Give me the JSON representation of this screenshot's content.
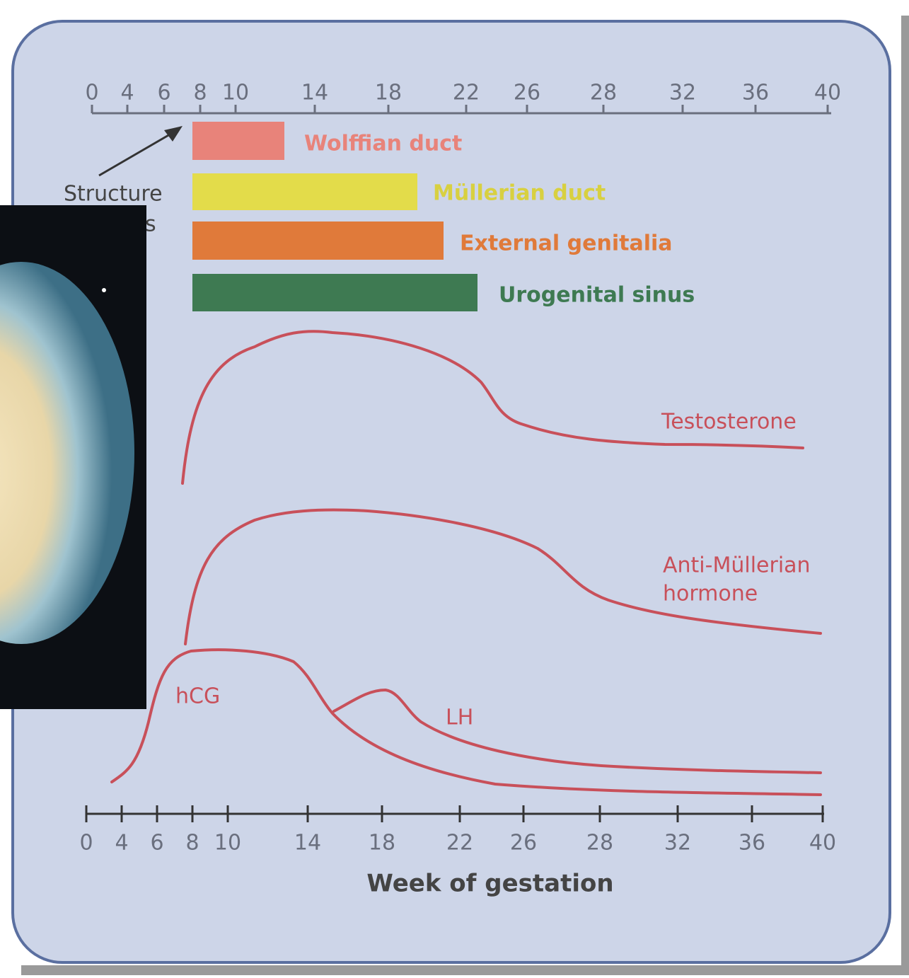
{
  "top_axis": {
    "ticks": [
      "0",
      "4",
      "6",
      "8",
      "10",
      "14",
      "18",
      "22",
      "26",
      "28",
      "32",
      "36",
      "40"
    ]
  },
  "structure_label": [
    "Structure",
    "s"
  ],
  "bars": [
    {
      "label": "Wolffian duct"
    },
    {
      "label": "Müllerian duct"
    },
    {
      "label": "External genitalia"
    },
    {
      "label": "Urogenital sinus"
    }
  ],
  "curves": {
    "testosterone": "Testosterone",
    "amh": [
      "Anti-Müllerian",
      "hormone"
    ],
    "hcg": "hCG",
    "lh": "LH"
  },
  "bottom_axis": {
    "ticks": [
      "0",
      "4",
      "6",
      "8",
      "10",
      "14",
      "18",
      "22",
      "26",
      "28",
      "32",
      "36",
      "40"
    ],
    "title": "Week of gestation"
  }
}
